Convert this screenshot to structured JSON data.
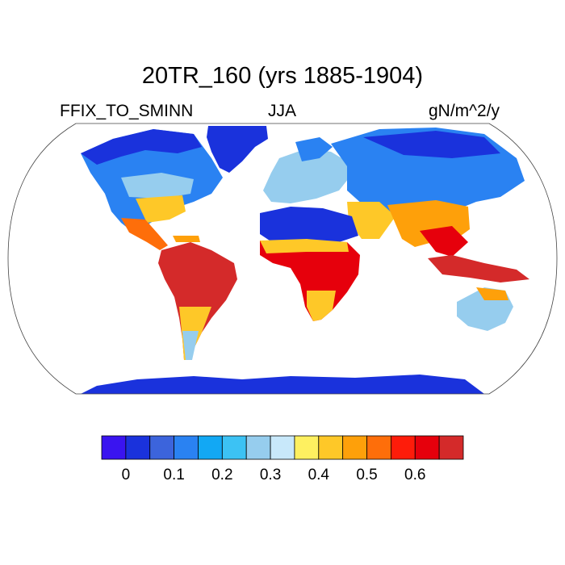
{
  "title": "20TR_160 (yrs 1885-1904)",
  "left_label": "FFIX_TO_SMINN",
  "center_label": "JJA",
  "right_label": "gN/m^2/y",
  "colorbar": {
    "colors": [
      "#3a14f0",
      "#1a32dc",
      "#3c64dc",
      "#2a82f2",
      "#12a8f4",
      "#3cc2f4",
      "#96cdee",
      "#c8e8fa",
      "#fef060",
      "#fec828",
      "#fea00a",
      "#fe6e0a",
      "#fe1c0a",
      "#e6000c",
      "#d42a2a"
    ],
    "tick_labels": [
      "0",
      "0.1",
      "0.2",
      "0.3",
      "0.4",
      "0.5",
      "0.6"
    ]
  },
  "land_colors": {
    "low": "#1a32dc",
    "mid_blue": "#2a82f2",
    "light_blue": "#96cdee",
    "yellow": "#fec828",
    "orange": "#fea00a",
    "red": "#e6000c",
    "dark_red": "#d42a2a"
  }
}
